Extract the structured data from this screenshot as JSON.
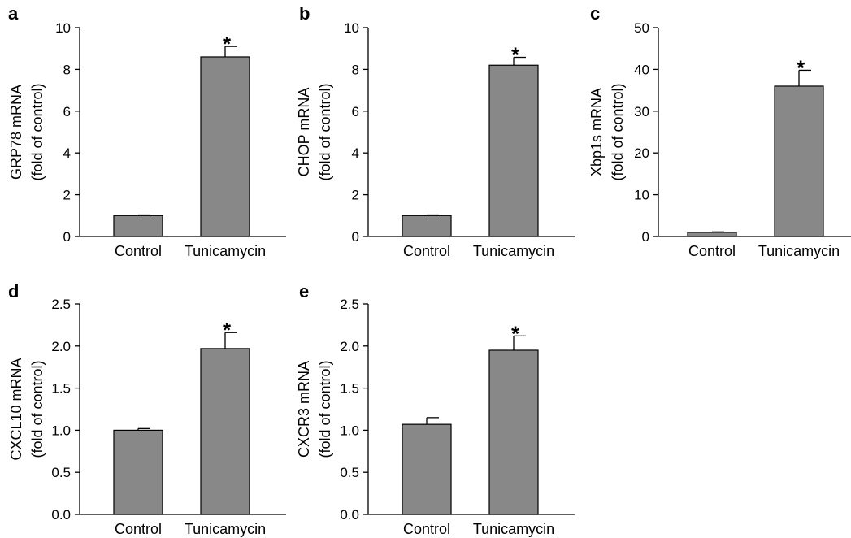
{
  "colors": {
    "bar_fill": "#888888",
    "axis": "#000000"
  },
  "chart_data": [
    {
      "type": "bar",
      "panel": "a",
      "categories": [
        "Control",
        "Tunicamycin"
      ],
      "values": [
        1.0,
        8.6
      ],
      "errors": [
        0.03,
        0.5
      ],
      "significance": [
        "",
        "*"
      ],
      "ylabel_lines": [
        "GRP78 mRNA",
        "(fold of control)"
      ],
      "ylim": [
        0,
        10
      ],
      "yticks": [
        0,
        2,
        4,
        6,
        8,
        10
      ],
      "ytick_labels": [
        "0",
        "2",
        "4",
        "6",
        "8",
        "10"
      ]
    },
    {
      "type": "bar",
      "panel": "b",
      "categories": [
        "Control",
        "Tunicamycin"
      ],
      "values": [
        1.0,
        8.2
      ],
      "errors": [
        0.03,
        0.38
      ],
      "significance": [
        "",
        "*"
      ],
      "ylabel_lines": [
        "CHOP mRNA",
        "(fold of control)"
      ],
      "ylim": [
        0,
        10
      ],
      "yticks": [
        0,
        2,
        4,
        6,
        8,
        10
      ],
      "ytick_labels": [
        "0",
        "2",
        "4",
        "6",
        "8",
        "10"
      ]
    },
    {
      "type": "bar",
      "panel": "c",
      "categories": [
        "Control",
        "Tunicamycin"
      ],
      "values": [
        1.0,
        36.0
      ],
      "errors": [
        0.1,
        3.8
      ],
      "significance": [
        "",
        "*"
      ],
      "ylabel_lines": [
        "Xbp1s mRNA",
        "(fold of control)"
      ],
      "ylim": [
        0,
        50
      ],
      "yticks": [
        0,
        10,
        20,
        30,
        40,
        50
      ],
      "ytick_labels": [
        "0",
        "10",
        "20",
        "30",
        "40",
        "50"
      ]
    },
    {
      "type": "bar",
      "panel": "d",
      "categories": [
        "Control",
        "Tunicamycin"
      ],
      "values": [
        1.0,
        1.97
      ],
      "errors": [
        0.02,
        0.19
      ],
      "significance": [
        "",
        "*"
      ],
      "ylabel_lines": [
        "CXCL10 mRNA",
        "(fold of control)"
      ],
      "ylim": [
        0,
        2.5
      ],
      "yticks": [
        0,
        0.5,
        1.0,
        1.5,
        2.0,
        2.5
      ],
      "ytick_labels": [
        "0.0",
        "0.5",
        "1.0",
        "1.5",
        "2.0",
        "2.5"
      ]
    },
    {
      "type": "bar",
      "panel": "e",
      "categories": [
        "Control",
        "Tunicamycin"
      ],
      "values": [
        1.07,
        1.95
      ],
      "errors": [
        0.08,
        0.17
      ],
      "significance": [
        "",
        "*"
      ],
      "ylabel_lines": [
        "CXCR3 mRNA",
        "(fold of control)"
      ],
      "ylim": [
        0,
        2.5
      ],
      "yticks": [
        0,
        0.5,
        1.0,
        1.5,
        2.0,
        2.5
      ],
      "ytick_labels": [
        "0.0",
        "0.5",
        "1.0",
        "1.5",
        "2.0",
        "2.5"
      ]
    }
  ]
}
